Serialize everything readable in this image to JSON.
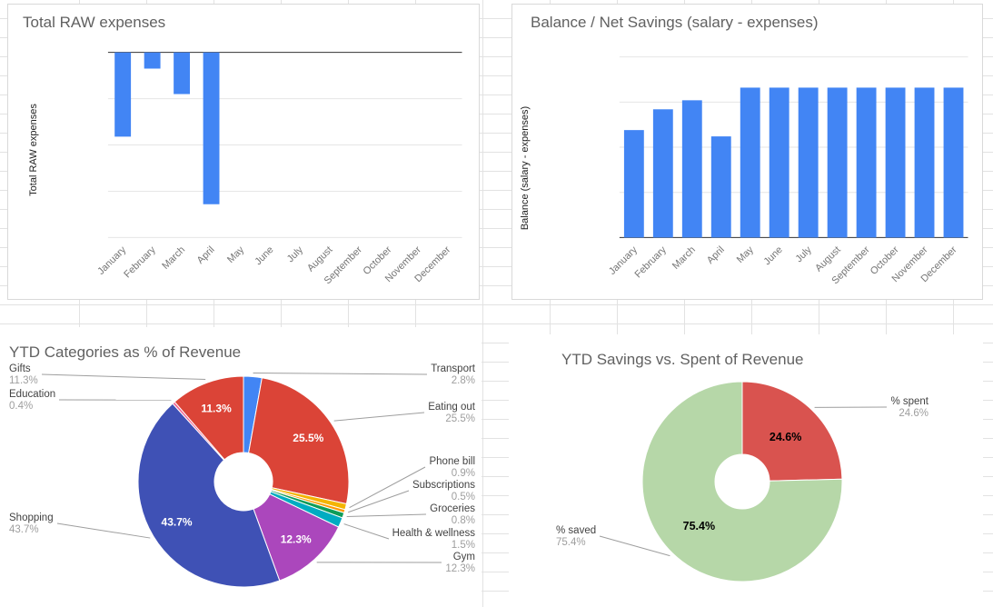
{
  "chart_data": [
    {
      "type": "bar",
      "title": "Total RAW expenses",
      "ylabel": "Total RAW expenses",
      "xlabel": "",
      "categories": [
        "January",
        "February",
        "March",
        "April",
        "May",
        "June",
        "July",
        "August",
        "September",
        "October",
        "November",
        "December"
      ],
      "values": [
        -910,
        -175,
        -450,
        -1640,
        0,
        0,
        0,
        0,
        0,
        0,
        0,
        0
      ],
      "ylim": [
        -2000,
        0
      ],
      "grid": true,
      "legend_position": "none",
      "bar_color": "#4285F4"
    },
    {
      "type": "bar",
      "title": "Balance / Net Savings (salary - expenses)",
      "ylabel": "Balance (salary - expenses)",
      "xlabel": "",
      "categories": [
        "January",
        "February",
        "March",
        "April",
        "May",
        "June",
        "July",
        "August",
        "September",
        "October",
        "November",
        "December"
      ],
      "values": [
        2975,
        3550,
        3800,
        2800,
        4150,
        4150,
        4150,
        4150,
        4150,
        4150,
        4150,
        4150
      ],
      "ylim": [
        0,
        5000
      ],
      "grid": true,
      "legend_position": "none",
      "bar_color": "#4285F4"
    },
    {
      "type": "pie",
      "title": "YTD Categories as % of Revenue",
      "donut": true,
      "labels": [
        "Transport",
        "Eating out",
        "Phone bill",
        "Subscriptions",
        "Groceries",
        "Health & wellness",
        "Gym",
        "Shopping",
        "Education",
        "Gifts"
      ],
      "values": [
        2.8,
        25.5,
        0.9,
        0.5,
        0.8,
        1.5,
        12.3,
        43.7,
        0.4,
        11.3
      ],
      "colors": [
        "#4285F4",
        "#DB4437",
        "#F4B400",
        "#FF9900",
        "#0F9D58",
        "#00ACC1",
        "#AB47BC",
        "#3F51B5",
        "#F06292",
        "#DB4437"
      ],
      "legend_position": "labeled-callouts"
    },
    {
      "type": "pie",
      "title": "YTD Savings vs. Spent of Revenue",
      "donut": true,
      "labels": [
        "% spent",
        "% saved"
      ],
      "values": [
        24.6,
        75.4
      ],
      "colors": [
        "#D9534F",
        "#B6D7A8"
      ],
      "legend_position": "labeled-callouts"
    }
  ]
}
